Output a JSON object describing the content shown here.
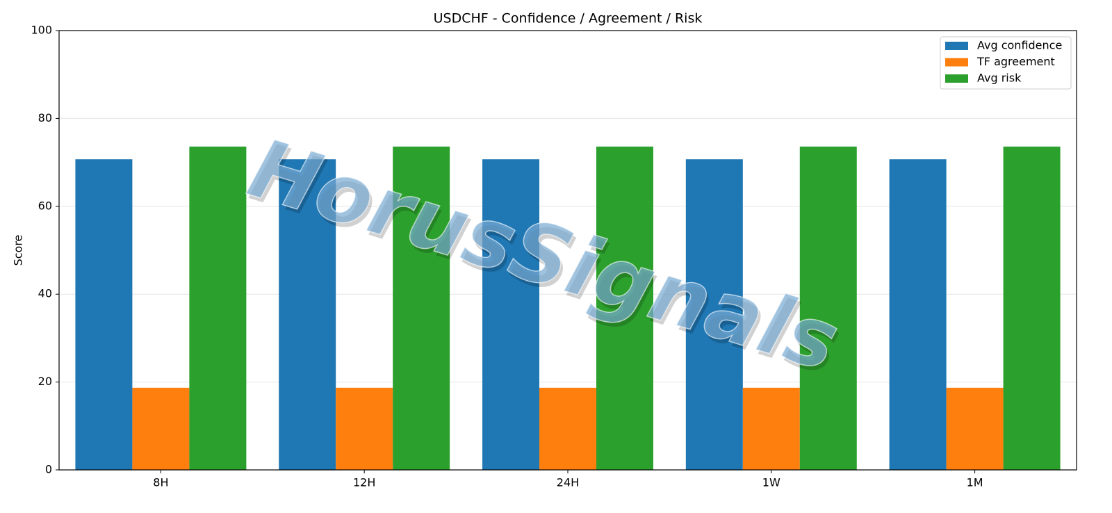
{
  "chart_data": {
    "type": "bar",
    "title": "USDCHF - Confidence / Agreement / Risk",
    "y_label": "Score",
    "watermark": "HorusSignals",
    "categories": [
      "8H",
      "12H",
      "24H",
      "1W",
      "1M"
    ],
    "series": [
      {
        "name": "Avg confidence",
        "color": "#1f77b4",
        "values": [
          70.7,
          70.7,
          70.7,
          70.7,
          70.7
        ]
      },
      {
        "name": "TF agreement",
        "color": "#ff7f0e",
        "values": [
          18.7,
          18.7,
          18.7,
          18.7,
          18.7
        ]
      },
      {
        "name": "Avg risk",
        "color": "#2ca02c",
        "values": [
          73.6,
          73.6,
          73.6,
          73.6,
          73.6
        ]
      }
    ],
    "ylim": [
      0,
      100
    ],
    "yticks": [
      0,
      20,
      40,
      60,
      80,
      100
    ],
    "grid": true,
    "legend": "upper right"
  }
}
